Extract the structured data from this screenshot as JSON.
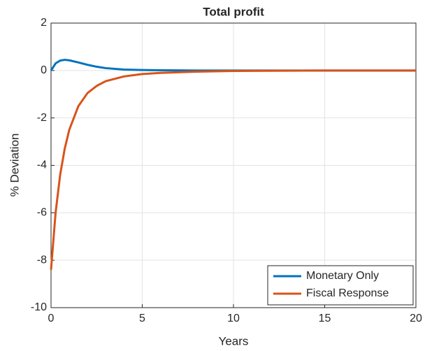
{
  "chart_data": {
    "type": "line",
    "title": "Total profit",
    "x_label": "Years",
    "y_label": "% Deviation",
    "x": [
      0,
      0.25,
      0.5,
      0.75,
      1,
      1.5,
      2,
      2.5,
      3,
      4,
      5,
      6,
      8,
      10,
      15,
      20
    ],
    "series": [
      {
        "name": "Monetary Only",
        "color": "#0072bd",
        "values": [
          0,
          0.3,
          0.42,
          0.45,
          0.43,
          0.34,
          0.24,
          0.16,
          0.1,
          0.04,
          0.02,
          0.01,
          0,
          0,
          0,
          0
        ]
      },
      {
        "name": "Fiscal Response",
        "color": "#d95319",
        "values": [
          -8.4,
          -6.0,
          -4.4,
          -3.3,
          -2.5,
          -1.5,
          -0.95,
          -0.65,
          -0.45,
          -0.25,
          -0.15,
          -0.1,
          -0.05,
          -0.02,
          0,
          0
        ]
      }
    ],
    "xlim": [
      0,
      20
    ],
    "xticks": [
      0,
      5,
      10,
      15,
      20
    ],
    "ylim": [
      -10,
      2
    ],
    "yticks": [
      -10,
      -8,
      -6,
      -4,
      -2,
      0,
      2
    ],
    "grid": true,
    "legend": "lower right"
  }
}
